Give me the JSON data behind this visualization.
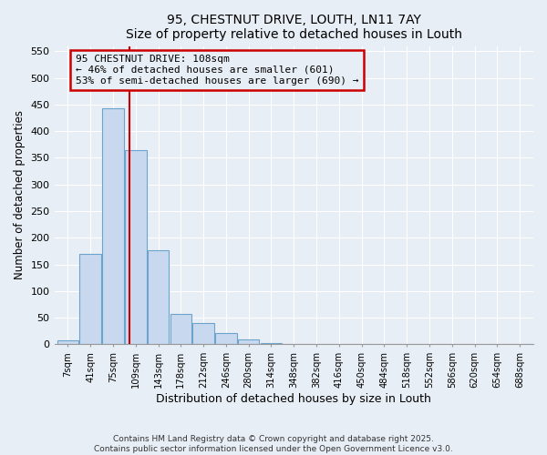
{
  "title": "95, CHESTNUT DRIVE, LOUTH, LN11 7AY",
  "subtitle": "Size of property relative to detached houses in Louth",
  "xlabel": "Distribution of detached houses by size in Louth",
  "ylabel": "Number of detached properties",
  "bar_labels": [
    "7sqm",
    "41sqm",
    "75sqm",
    "109sqm",
    "143sqm",
    "178sqm",
    "212sqm",
    "246sqm",
    "280sqm",
    "314sqm",
    "348sqm",
    "382sqm",
    "416sqm",
    "450sqm",
    "484sqm",
    "518sqm",
    "552sqm",
    "586sqm",
    "620sqm",
    "654sqm",
    "688sqm"
  ],
  "bar_values": [
    8,
    170,
    443,
    365,
    177,
    57,
    40,
    22,
    10,
    2,
    0,
    0,
    0,
    0,
    0,
    0,
    0,
    0,
    0,
    0,
    0
  ],
  "bar_color": "#c8d9ef",
  "bar_edgecolor": "#6ba3cc",
  "property_line_label": "95 CHESTNUT DRIVE: 108sqm",
  "annotation_line1": "← 46% of detached houses are smaller (601)",
  "annotation_line2": "53% of semi-detached houses are larger (690) →",
  "vline_color": "#cc0000",
  "vline_x_index": 2.72,
  "ylim": [
    0,
    560
  ],
  "yticks": [
    0,
    50,
    100,
    150,
    200,
    250,
    300,
    350,
    400,
    450,
    500,
    550
  ],
  "background_color": "#e8eef5",
  "grid_color": "#ffffff",
  "footnote1": "Contains HM Land Registry data © Crown copyright and database right 2025.",
  "footnote2": "Contains public sector information licensed under the Open Government Licence v3.0."
}
